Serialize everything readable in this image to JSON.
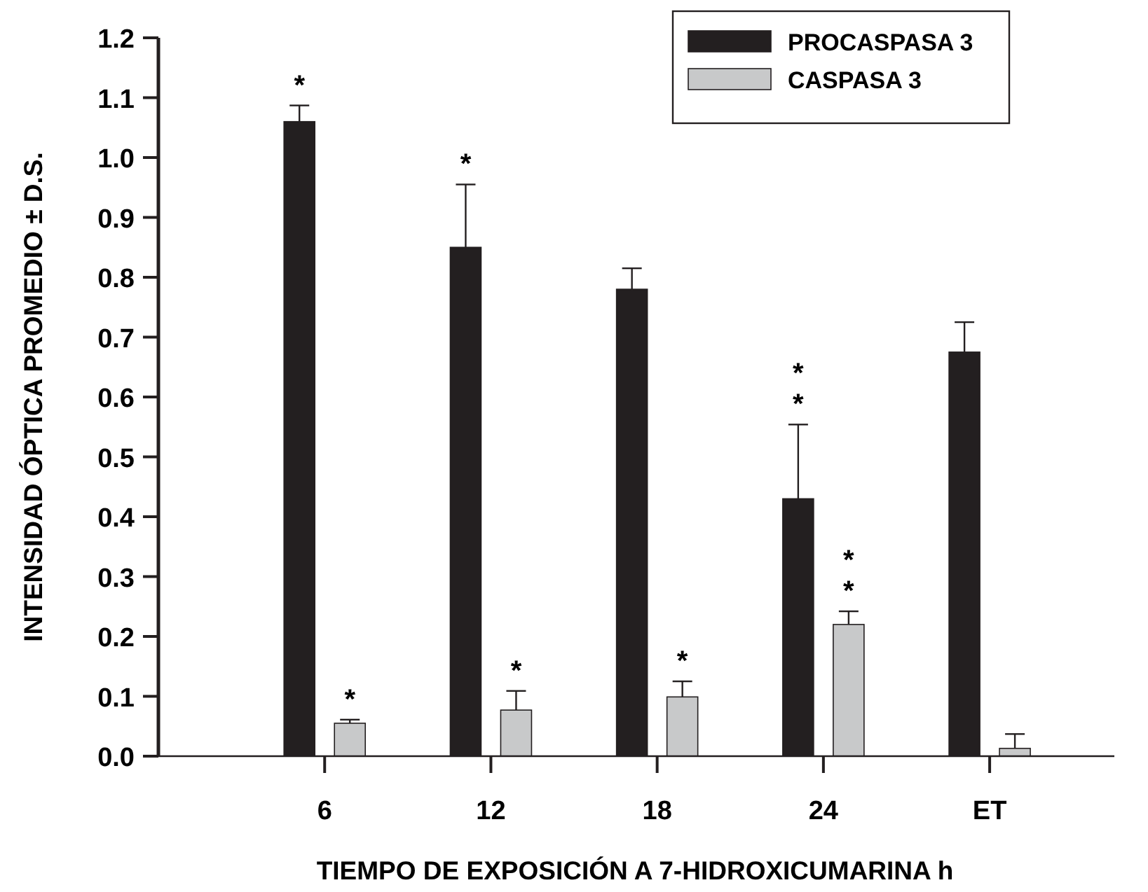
{
  "chart_data": {
    "type": "bar",
    "xlabel": "TIEMPO DE EXPOSICIÓN A 7-HIDROXICUMARINA h",
    "ylabel": "INTENSIDAD ÓPTICA PROMEDIO ± D.S.",
    "categories": [
      "6",
      "12",
      "18",
      "24",
      "ET"
    ],
    "series": [
      {
        "name": "PROCASPASA 3",
        "color": "#231f20",
        "values": [
          1.06,
          0.85,
          0.78,
          0.43,
          0.675
        ],
        "errors": [
          0.027,
          0.105,
          0.035,
          0.124,
          0.05
        ],
        "value_labels": [
          "*",
          "*",
          null,
          "**",
          null
        ]
      },
      {
        "name": "CASPASA 3",
        "color": "#c8c9ca",
        "values": [
          0.055,
          0.077,
          0.099,
          0.22,
          0.013
        ],
        "errors": [
          0.006,
          0.032,
          0.026,
          0.022,
          0.024
        ],
        "value_labels": [
          "*",
          "*",
          "*",
          "**",
          null
        ]
      }
    ],
    "ylim": [
      0,
      1.2
    ],
    "yticks": [
      {
        "value": 0,
        "label": "0.0"
      },
      0.1,
      0.2,
      0.3,
      0.4,
      0.5,
      0.6,
      0.7,
      0.8,
      0.9,
      {
        "value": 1,
        "label": "1.0"
      },
      1.1,
      1.2
    ],
    "legend": "top right",
    "grid": false
  }
}
